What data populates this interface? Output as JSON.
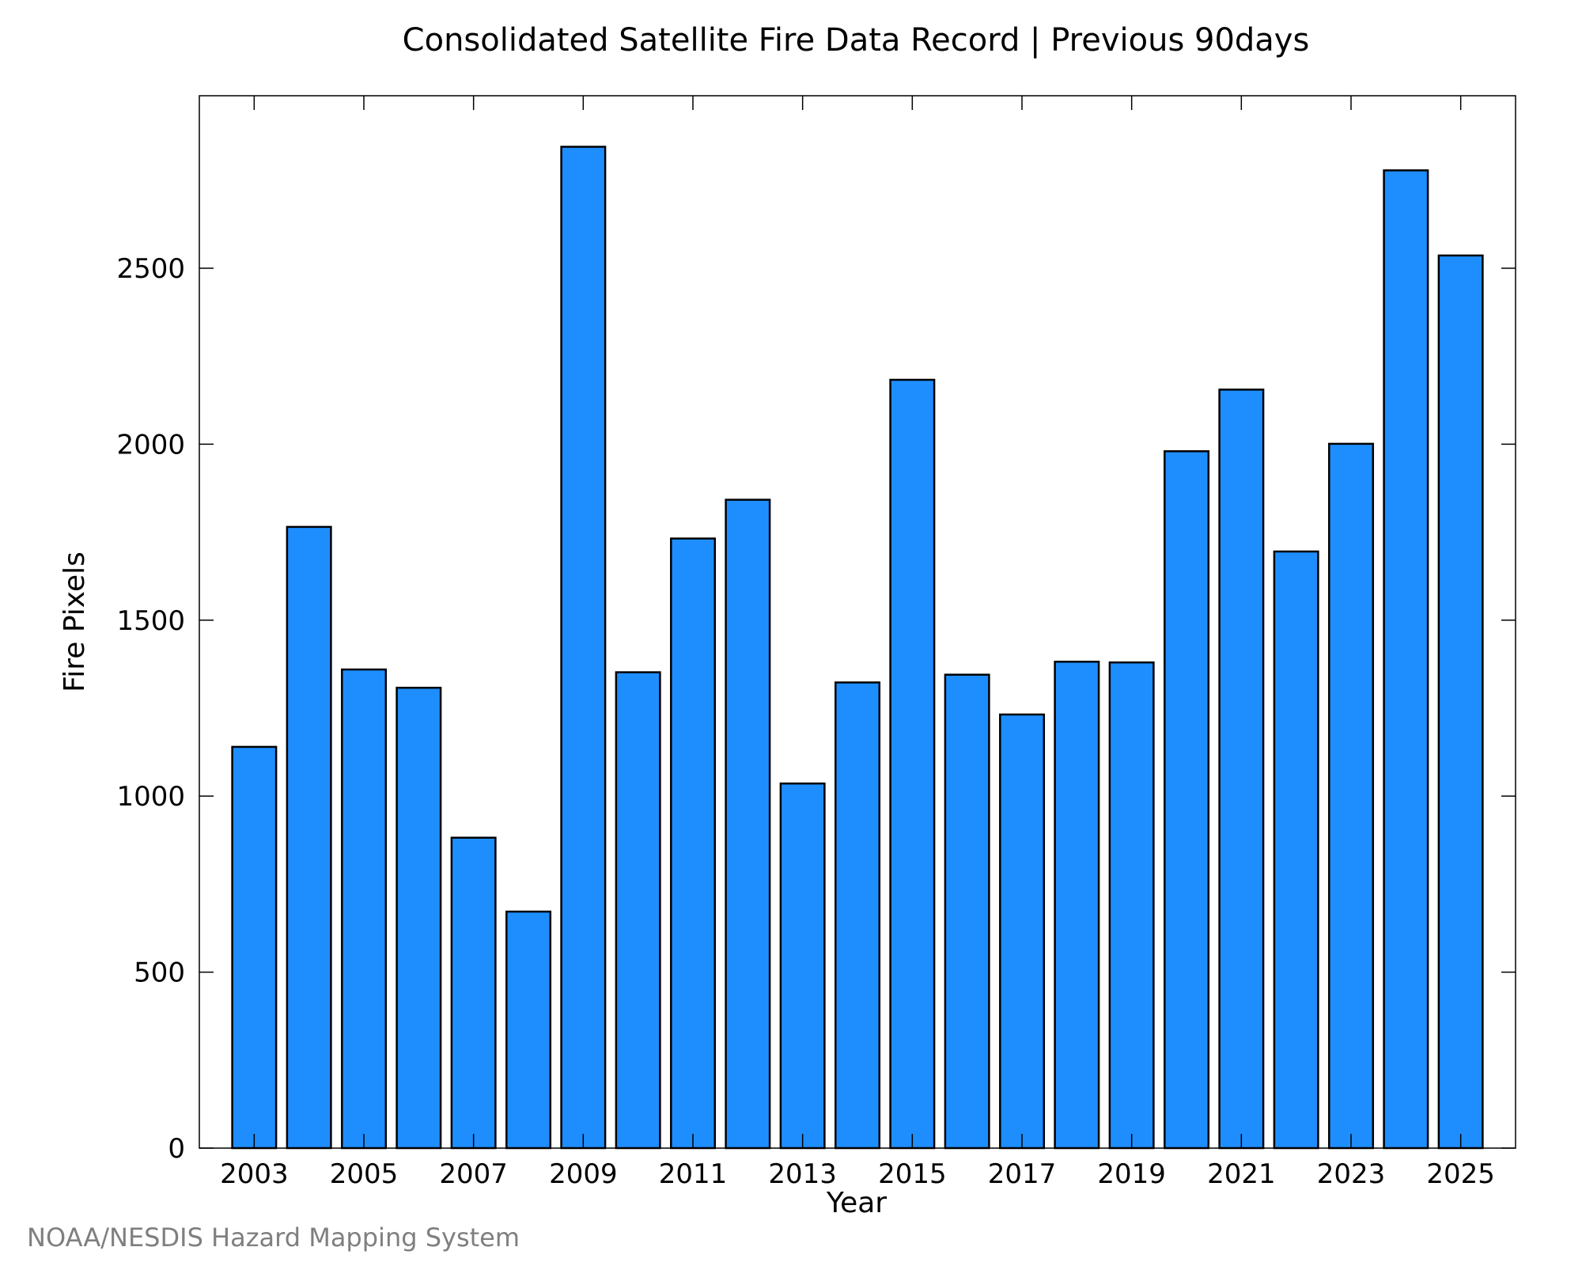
{
  "chart_data": {
    "type": "bar",
    "title": "Consolidated Satellite Fire Data Record | Previous 90days",
    "xlabel": "Year",
    "ylabel": "Fire Pixels",
    "categories": [
      "2003",
      "2004",
      "2005",
      "2006",
      "2007",
      "2008",
      "2009",
      "2010",
      "2011",
      "2012",
      "2013",
      "2014",
      "2015",
      "2016",
      "2017",
      "2018",
      "2019",
      "2020",
      "2021",
      "2022",
      "2023",
      "2024",
      "2025"
    ],
    "x_tick_labels": [
      "2003",
      "2005",
      "2007",
      "2009",
      "2011",
      "2013",
      "2015",
      "2017",
      "2019",
      "2021",
      "2023",
      "2025"
    ],
    "y_tick_labels": [
      "0",
      "500",
      "1000",
      "1500",
      "2000",
      "2500"
    ],
    "y_ticks": [
      0,
      500,
      1000,
      1500,
      2000,
      2500
    ],
    "values": [
      1140,
      1765,
      1360,
      1308,
      882,
      672,
      2845,
      1352,
      1732,
      1842,
      1036,
      1323,
      2183,
      1345,
      1232,
      1382,
      1380,
      1980,
      2155,
      1695,
      2001,
      2778,
      2536
    ],
    "ylim": [
      0,
      2990
    ],
    "xlim": [
      2002.0,
      2026.0
    ],
    "grid": false,
    "bar_color": "#1e8eff",
    "bar_edge_color": "#000000",
    "source": "NOAA/NESDIS Hazard Mapping System",
    "source_color": "#7f7f7f"
  }
}
